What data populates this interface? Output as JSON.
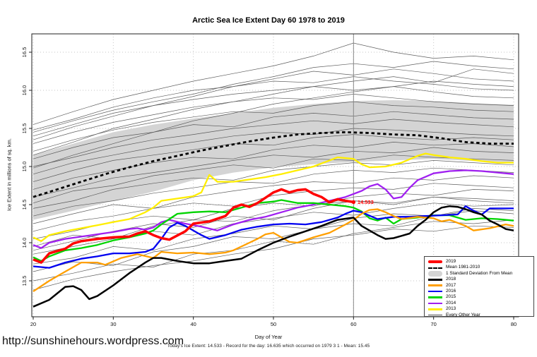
{
  "page": {
    "watermark_url": "http://sunshinehours.wordpress.com"
  },
  "chart_data": {
    "type": "line",
    "title": "Arctic Sea Ice Extent Day 60 1978 to 2019",
    "xlabel": "Day of Year",
    "ylabel": "Ice Extent in millions of sq. km.",
    "caption": "Today's Ice Extent: 14.533  - Record for the day: 16.635 which occurred on 1979 3 1  - Mean: 15.45",
    "xlim": [
      20,
      80
    ],
    "ylim": [
      13.03,
      16.74
    ],
    "x_ticks": [
      20,
      30,
      40,
      50,
      60,
      70,
      80
    ],
    "y_ticks": [
      "13.5",
      "14.0",
      "14.5",
      "15.0",
      "15.5",
      "16.0",
      "16.5"
    ],
    "grid": "dotted",
    "legend_position": "bottom-right",
    "day60_marker_x": 60,
    "annotation": {
      "x": 60,
      "y": 14.533,
      "label": "14.533",
      "color": "#ff0000"
    },
    "band": {
      "label": "1 Standard Deviation From Mean",
      "color": "#d4d4d4",
      "days": [
        20,
        25,
        30,
        35,
        40,
        45,
        50,
        55,
        60,
        65,
        70,
        75,
        80
      ],
      "upper": [
        15.15,
        15.3,
        15.45,
        15.55,
        15.63,
        15.7,
        15.77,
        15.82,
        15.86,
        15.87,
        15.86,
        15.83,
        15.81
      ],
      "lower": [
        14.3,
        14.42,
        14.55,
        14.67,
        14.82,
        14.92,
        14.99,
        15.03,
        15.06,
        15.08,
        15.1,
        15.07,
        15.05
      ]
    },
    "mean": {
      "label": "Mean 1981-2010",
      "color": "#000000",
      "style": "dashed",
      "days": [
        20,
        23,
        26,
        29,
        32,
        35,
        38,
        41,
        44,
        47,
        50,
        53,
        56,
        59,
        62,
        65,
        68,
        71,
        74,
        77,
        80
      ],
      "values": [
        14.6,
        14.7,
        14.8,
        14.9,
        14.99,
        15.07,
        15.14,
        15.21,
        15.27,
        15.33,
        15.38,
        15.42,
        15.44,
        15.45,
        15.44,
        15.42,
        15.41,
        15.37,
        15.32,
        15.3,
        15.3
      ]
    },
    "series": [
      {
        "name": "2013",
        "color": "#ffee00",
        "width": 2.3,
        "days": [
          20,
          21,
          22,
          24,
          26,
          28,
          30,
          32,
          34,
          35,
          36,
          38,
          40,
          41,
          42,
          43,
          45,
          47,
          49,
          51,
          53,
          55,
          56,
          57,
          58,
          60,
          61,
          62,
          64,
          66,
          68,
          69,
          70,
          72,
          74,
          76,
          78,
          80
        ],
        "values": [
          14.07,
          14.02,
          14.1,
          14.15,
          14.19,
          14.23,
          14.27,
          14.31,
          14.4,
          14.46,
          14.55,
          14.58,
          14.61,
          14.66,
          14.89,
          14.8,
          14.8,
          14.83,
          14.86,
          14.9,
          14.95,
          15.0,
          15.04,
          15.08,
          15.12,
          15.1,
          15.03,
          14.99,
          15.0,
          15.05,
          15.14,
          15.17,
          15.15,
          15.12,
          15.1,
          15.07,
          15.05,
          15.05
        ]
      },
      {
        "name": "2014",
        "color": "#a020f0",
        "width": 2.3,
        "days": [
          20,
          21,
          22,
          24,
          26,
          28,
          30,
          32,
          33,
          34,
          35,
          36,
          37,
          39,
          41,
          43,
          45,
          47,
          49,
          51,
          53,
          55,
          57,
          59,
          61,
          62,
          63,
          64,
          65,
          66,
          67,
          68,
          70,
          72,
          74,
          76,
          78,
          80
        ],
        "values": [
          13.97,
          13.93,
          14.0,
          14.05,
          14.08,
          14.11,
          14.14,
          14.18,
          14.19,
          14.17,
          14.2,
          14.27,
          14.3,
          14.25,
          14.21,
          14.16,
          14.24,
          14.3,
          14.34,
          14.4,
          14.46,
          14.5,
          14.55,
          14.6,
          14.68,
          14.74,
          14.77,
          14.7,
          14.58,
          14.6,
          14.72,
          14.82,
          14.91,
          14.94,
          14.95,
          14.94,
          14.92,
          14.9
        ]
      },
      {
        "name": "2015",
        "color": "#00d400",
        "width": 2.3,
        "days": [
          20,
          21,
          22,
          24,
          26,
          28,
          30,
          32,
          34,
          35,
          36,
          37,
          38,
          40,
          42,
          44,
          46,
          48,
          50,
          51,
          53,
          55,
          57,
          59,
          60,
          61,
          62,
          63,
          64,
          65,
          66,
          68,
          70,
          72,
          74,
          76,
          78,
          80
        ],
        "values": [
          13.81,
          13.76,
          13.82,
          13.9,
          13.93,
          13.97,
          14.03,
          14.07,
          14.12,
          14.16,
          14.24,
          14.31,
          14.38,
          14.4,
          14.41,
          14.4,
          14.46,
          14.52,
          14.54,
          14.56,
          14.52,
          14.52,
          14.5,
          14.48,
          14.46,
          14.41,
          14.32,
          14.29,
          14.33,
          14.25,
          14.31,
          14.33,
          14.36,
          14.36,
          14.3,
          14.32,
          14.31,
          14.29
        ]
      },
      {
        "name": "2016",
        "color": "#0000f0",
        "width": 2.3,
        "days": [
          20,
          22,
          24,
          26,
          28,
          30,
          32,
          34,
          35,
          36,
          37,
          38,
          39,
          41,
          42,
          44,
          46,
          48,
          50,
          52,
          54,
          56,
          58,
          59,
          60,
          61,
          63,
          65,
          67,
          69,
          71,
          73,
          74,
          75,
          76,
          77,
          79,
          80
        ],
        "values": [
          13.69,
          13.67,
          13.74,
          13.79,
          13.82,
          13.86,
          13.86,
          13.88,
          13.92,
          14.05,
          14.2,
          14.26,
          14.22,
          14.1,
          14.05,
          14.1,
          14.17,
          14.21,
          14.24,
          14.25,
          14.24,
          14.27,
          14.33,
          14.38,
          14.42,
          14.4,
          14.31,
          14.34,
          14.34,
          14.35,
          14.36,
          14.37,
          14.48,
          14.42,
          14.37,
          14.45,
          14.45,
          14.45
        ]
      },
      {
        "name": "2017",
        "color": "#ff9f00",
        "width": 2.3,
        "days": [
          20,
          22,
          24,
          26,
          28,
          29,
          31,
          33,
          35,
          36,
          38,
          40,
          42,
          44,
          45,
          47,
          48,
          49,
          50,
          52,
          53,
          55,
          57,
          59,
          60,
          61,
          62,
          63,
          64,
          65,
          66,
          68,
          70,
          71,
          72,
          74,
          75,
          77,
          79,
          80
        ],
        "values": [
          13.36,
          13.5,
          13.62,
          13.74,
          13.74,
          13.71,
          13.8,
          13.85,
          13.8,
          13.88,
          13.86,
          13.87,
          13.85,
          13.87,
          13.9,
          14.0,
          14.05,
          14.11,
          14.13,
          14.01,
          14.0,
          14.07,
          14.13,
          14.24,
          14.3,
          14.38,
          14.43,
          14.44,
          14.4,
          14.35,
          14.31,
          14.34,
          14.32,
          14.28,
          14.3,
          14.22,
          14.16,
          14.19,
          14.24,
          14.22
        ]
      },
      {
        "name": "2018",
        "color": "#000000",
        "width": 2.5,
        "days": [
          20,
          22,
          24,
          25,
          26,
          27,
          28,
          30,
          32,
          34,
          35,
          36,
          38,
          40,
          42,
          44,
          46,
          48,
          50,
          52,
          54,
          56,
          58,
          60,
          61,
          62,
          63,
          64,
          65,
          66,
          67,
          68,
          69,
          70,
          71,
          72,
          73,
          74,
          75,
          76,
          77,
          78,
          79,
          80
        ],
        "values": [
          13.16,
          13.25,
          13.42,
          13.43,
          13.38,
          13.26,
          13.3,
          13.44,
          13.6,
          13.74,
          13.8,
          13.8,
          13.76,
          13.73,
          13.73,
          13.76,
          13.79,
          13.9,
          14.0,
          14.08,
          14.15,
          14.22,
          14.3,
          14.33,
          14.22,
          14.16,
          14.1,
          14.05,
          14.06,
          14.09,
          14.12,
          14.22,
          14.3,
          14.4,
          14.46,
          14.48,
          14.47,
          14.44,
          14.4,
          14.37,
          14.29,
          14.24,
          14.18,
          14.16
        ]
      },
      {
        "name": "2019",
        "color": "#ff0000",
        "width": 3.5,
        "days": [
          20,
          21,
          22,
          24,
          25,
          26,
          28,
          30,
          32,
          33,
          34,
          35,
          36,
          37,
          39,
          40,
          42,
          44,
          45,
          46,
          47,
          48,
          49,
          50,
          51,
          52,
          53,
          54,
          55,
          56,
          57,
          58,
          59,
          60
        ],
        "values": [
          13.78,
          13.74,
          13.86,
          13.92,
          13.99,
          14.02,
          14.05,
          14.07,
          14.08,
          14.12,
          14.15,
          14.1,
          14.06,
          14.04,
          14.15,
          14.25,
          14.28,
          14.35,
          14.46,
          14.5,
          14.47,
          14.52,
          14.59,
          14.66,
          14.7,
          14.66,
          14.69,
          14.7,
          14.64,
          14.6,
          14.53,
          14.57,
          14.55,
          14.533
        ]
      }
    ],
    "other_years": {
      "label": "Every Other Year",
      "color": "#4d4d4d",
      "days": [
        20,
        25,
        30,
        35,
        40,
        45,
        50,
        55,
        60,
        65,
        70,
        75,
        80
      ],
      "lines": [
        [
          13.38,
          13.52,
          13.62,
          13.7,
          13.76,
          13.85,
          13.92,
          14.05,
          14.1,
          14.18,
          14.15,
          14.22,
          14.2
        ],
        [
          13.5,
          13.6,
          13.72,
          13.68,
          13.85,
          13.9,
          14.02,
          13.98,
          14.12,
          14.2,
          14.28,
          14.25,
          14.3
        ],
        [
          13.62,
          13.75,
          13.7,
          13.88,
          13.95,
          14.08,
          14.05,
          14.18,
          14.25,
          14.22,
          14.35,
          14.42,
          14.38
        ],
        [
          13.72,
          13.8,
          13.95,
          13.9,
          14.05,
          14.12,
          14.22,
          14.18,
          14.32,
          14.38,
          14.35,
          14.45,
          14.42
        ],
        [
          13.85,
          13.95,
          14.05,
          14.15,
          14.1,
          14.25,
          14.32,
          14.4,
          14.36,
          14.45,
          14.52,
          14.48,
          14.5
        ],
        [
          13.9,
          14.02,
          14.15,
          14.25,
          14.2,
          14.35,
          14.3,
          14.45,
          14.55,
          14.5,
          14.6,
          14.55,
          14.52
        ],
        [
          13.95,
          14.1,
          14.05,
          14.22,
          14.3,
          14.28,
          14.42,
          14.5,
          14.55,
          14.52,
          14.6,
          14.58,
          14.55
        ],
        [
          14.05,
          14.15,
          14.28,
          14.35,
          14.3,
          14.45,
          14.52,
          14.48,
          14.6,
          14.65,
          14.62,
          14.7,
          14.68
        ],
        [
          14.15,
          14.28,
          14.35,
          14.45,
          14.52,
          14.48,
          14.62,
          14.68,
          14.72,
          14.7,
          14.78,
          14.75,
          14.72
        ],
        [
          14.25,
          14.38,
          14.5,
          14.45,
          14.6,
          14.68,
          14.75,
          14.8,
          14.78,
          14.85,
          14.82,
          14.88,
          14.85
        ],
        [
          14.35,
          14.48,
          14.55,
          14.65,
          14.72,
          14.8,
          14.78,
          14.9,
          14.95,
          14.92,
          14.98,
          14.95,
          14.92
        ],
        [
          14.45,
          14.55,
          14.7,
          14.78,
          14.85,
          14.82,
          14.95,
          15.0,
          15.05,
          15.02,
          15.08,
          15.05,
          15.02
        ],
        [
          14.52,
          14.68,
          14.75,
          14.88,
          14.95,
          15.02,
          14.98,
          15.1,
          15.08,
          15.15,
          15.12,
          15.1,
          15.08
        ],
        [
          14.6,
          14.72,
          14.85,
          14.92,
          15.0,
          15.08,
          15.15,
          15.12,
          15.2,
          15.18,
          15.25,
          15.2,
          15.18
        ],
        [
          14.7,
          14.85,
          14.95,
          15.05,
          15.12,
          15.1,
          15.22,
          15.28,
          15.25,
          15.32,
          15.28,
          15.3,
          15.26
        ],
        [
          14.8,
          14.95,
          15.08,
          15.15,
          15.22,
          15.3,
          15.28,
          15.38,
          15.42,
          15.38,
          15.35,
          15.38,
          15.35
        ],
        [
          14.9,
          15.05,
          15.15,
          15.25,
          15.32,
          15.4,
          15.45,
          15.42,
          15.5,
          15.48,
          15.45,
          15.42,
          15.4
        ],
        [
          14.98,
          15.15,
          15.3,
          15.45,
          15.6,
          15.7,
          15.82,
          15.9,
          15.98,
          16.05,
          16.12,
          16.08,
          16.05
        ],
        [
          15.0,
          15.12,
          15.25,
          15.35,
          15.42,
          15.5,
          15.55,
          15.6,
          15.56,
          15.62,
          15.58,
          15.55,
          15.52
        ],
        [
          15.1,
          15.25,
          15.38,
          15.45,
          15.55,
          15.52,
          15.65,
          15.7,
          15.66,
          15.72,
          15.68,
          15.64,
          15.62
        ],
        [
          15.15,
          15.32,
          15.5,
          15.62,
          15.75,
          15.85,
          15.95,
          16.05,
          16.12,
          16.18,
          16.1,
          16.28,
          16.22
        ],
        [
          15.2,
          15.35,
          15.48,
          15.58,
          15.65,
          15.72,
          15.7,
          15.8,
          15.85,
          15.8,
          15.78,
          15.74,
          15.72
        ],
        [
          15.3,
          15.45,
          15.58,
          15.68,
          15.78,
          15.85,
          15.9,
          15.88,
          15.95,
          15.9,
          15.85,
          15.82,
          15.8
        ],
        [
          15.35,
          15.52,
          15.66,
          15.8,
          15.92,
          16.05,
          16.15,
          16.25,
          16.2,
          16.28,
          16.22,
          16.15,
          16.12
        ],
        [
          15.4,
          15.55,
          15.7,
          15.8,
          15.88,
          15.95,
          16.0,
          16.05,
          16.0,
          16.05,
          15.98,
          15.92,
          15.9
        ],
        [
          15.45,
          15.6,
          15.74,
          15.85,
          15.95,
          16.08,
          16.18,
          16.3,
          16.35,
          16.3,
          16.38,
          16.32,
          16.28
        ],
        [
          15.48,
          15.62,
          15.78,
          15.9,
          16.0,
          16.05,
          16.12,
          16.1,
          16.18,
          16.12,
          16.08,
          16.02,
          16.0
        ],
        [
          15.55,
          15.72,
          15.88,
          16.0,
          16.12,
          16.22,
          16.32,
          16.45,
          16.62,
          16.5,
          16.42,
          16.45,
          16.4
        ]
      ]
    },
    "legend": [
      {
        "label": "2019",
        "type": "thick",
        "color": "#ff0000"
      },
      {
        "label": "Mean 1981-2010",
        "type": "dashed",
        "color": "#000000"
      },
      {
        "label": "1 Standard Deviation From Mean",
        "type": "band",
        "color": "#d4d4d4"
      },
      {
        "label": "2018",
        "type": "line",
        "color": "#000000"
      },
      {
        "label": "2017",
        "type": "line",
        "color": "#ff9f00"
      },
      {
        "label": "2016",
        "type": "line",
        "color": "#0000f0"
      },
      {
        "label": "2015",
        "type": "line",
        "color": "#00d400"
      },
      {
        "label": "2014",
        "type": "line",
        "color": "#a020f0"
      },
      {
        "label": "2013",
        "type": "line",
        "color": "#ffee00"
      },
      {
        "label": "Every Other Year",
        "type": "thin",
        "color": "#4d4d4d"
      }
    ]
  }
}
